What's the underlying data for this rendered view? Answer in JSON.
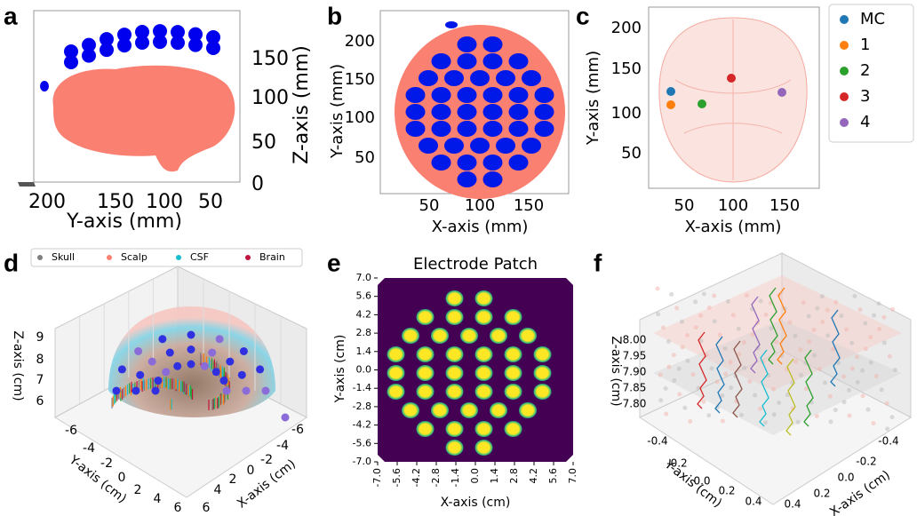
{
  "panels": [
    {
      "letter": "a",
      "y_label": "Y-axis (mm)",
      "z_label": "Z-axis (mm)",
      "y_ticks": [
        "200",
        "150",
        "100",
        "50"
      ],
      "z_ticks": [
        "150",
        "100",
        "50",
        "0"
      ]
    },
    {
      "letter": "b",
      "x_label": "X-axis (mm)",
      "y_label": "Y-axis (mm)",
      "x_ticks": [
        "50",
        "100",
        "150"
      ],
      "y_ticks": [
        "200",
        "150",
        "100",
        "50"
      ]
    },
    {
      "letter": "c",
      "x_label": "X-axis (mm)",
      "y_label": "Y-axis (mm)",
      "x_ticks": [
        "50",
        "100",
        "150"
      ],
      "y_ticks": [
        "200",
        "150",
        "100",
        "50"
      ],
      "legend": [
        {
          "name": "MC",
          "color": "#1f77b4"
        },
        {
          "name": "1",
          "color": "#ff7f0e"
        },
        {
          "name": "2",
          "color": "#2ca02c"
        },
        {
          "name": "3",
          "color": "#d62728"
        },
        {
          "name": "4",
          "color": "#9467bd"
        }
      ]
    },
    {
      "letter": "d",
      "x_label": "X-axis (cm)",
      "y_label": "Y-axis (cm)",
      "z_label": "Z-axis (cm)",
      "legend": [
        {
          "name": "Skull",
          "color": "#7f7f7f"
        },
        {
          "name": "Scalp",
          "color": "#fa8072"
        },
        {
          "name": "CSF",
          "color": "#17becf"
        },
        {
          "name": "Brain",
          "color": "#c0143c"
        }
      ],
      "x_ticks": [
        "-6",
        "-4",
        "-2",
        "0",
        "2",
        "4",
        "6"
      ],
      "y_ticks": [
        "-6",
        "-4",
        "-2",
        "0",
        "2",
        "4",
        "6"
      ],
      "z_ticks": [
        "9",
        "8",
        "7",
        "6"
      ]
    },
    {
      "letter": "e",
      "title": "Electrode Patch",
      "x_label": "X-axis (cm)",
      "y_label": "Y-axis (cm)",
      "x_ticks": [
        "-7.0",
        "-5.6",
        "-4.2",
        "-2.8",
        "-1.4",
        "0.0",
        "1.4",
        "2.8",
        "4.2",
        "5.6",
        "7.0"
      ],
      "y_ticks": [
        "7.0",
        "5.6",
        "4.2",
        "2.8",
        "1.4",
        "0.0",
        "-1.4",
        "-2.8",
        "-4.2",
        "-5.6",
        "-7.0"
      ]
    },
    {
      "letter": "f",
      "x_label": "X-axis (cm)",
      "y_label": "Y-axis (cm)",
      "z_label": "Z-axis (cm)",
      "x_ticks": [
        "-0.4",
        "-0.2",
        "0.0",
        "0.2",
        "0.4"
      ],
      "y_ticks": [
        "-0.4",
        "-0.2",
        "0.0",
        "0.2",
        "0.4"
      ],
      "z_ticks": [
        "8.00",
        "7.95",
        "7.90",
        "7.85",
        "7.80"
      ]
    }
  ]
}
